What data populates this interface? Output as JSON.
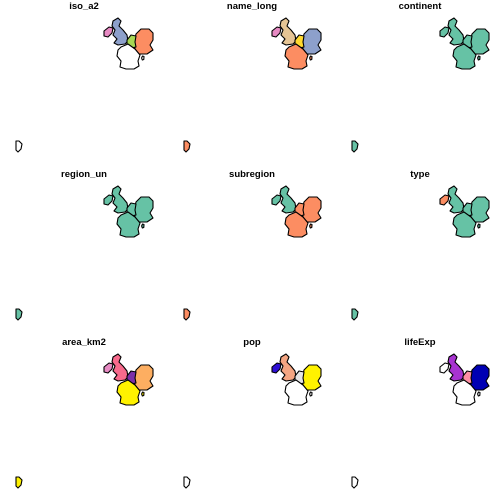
{
  "panels": [
    {
      "title": "iso_a2",
      "colors": {
        "ireland": "#E78AC3",
        "uk": "#8DA0CB",
        "benelux": "#A6D854",
        "germany": "#FC8D62",
        "france": "#FFFFFF",
        "corsica": "#FFFFFF",
        "guiana": "#FFFFFF"
      }
    },
    {
      "title": "name_long",
      "colors": {
        "ireland": "#E78AC3",
        "uk": "#E5C494",
        "benelux": "#FFD92F",
        "germany": "#8DA0CB",
        "france": "#FC8D62",
        "corsica": "#FC8D62",
        "guiana": "#FC8D62"
      }
    },
    {
      "title": "continent",
      "colors": {
        "ireland": "#66C2A5",
        "uk": "#66C2A5",
        "benelux": "#66C2A5",
        "germany": "#66C2A5",
        "france": "#66C2A5",
        "corsica": "#66C2A5",
        "guiana": "#66C2A5"
      }
    },
    {
      "title": "region_un",
      "colors": {
        "ireland": "#66C2A5",
        "uk": "#66C2A5",
        "benelux": "#66C2A5",
        "germany": "#66C2A5",
        "france": "#66C2A5",
        "corsica": "#66C2A5",
        "guiana": "#66C2A5"
      }
    },
    {
      "title": "subregion",
      "colors": {
        "ireland": "#66C2A5",
        "uk": "#66C2A5",
        "benelux": "#FC8D62",
        "germany": "#FC8D62",
        "france": "#FC8D62",
        "corsica": "#FC8D62",
        "guiana": "#FC8D62"
      }
    },
    {
      "title": "type",
      "colors": {
        "ireland": "#FC8D62",
        "uk": "#66C2A5",
        "benelux": "#66C2A5",
        "germany": "#66C2A5",
        "france": "#66C2A5",
        "corsica": "#66C2A5",
        "guiana": "#66C2A5"
      }
    },
    {
      "title": "area_km2",
      "colors": {
        "ireland": "#E78AC3",
        "uk": "#F76A8C",
        "benelux": "#7B2FA8",
        "germany": "#FDAE61",
        "france": "#FFF200",
        "corsica": "#FFF200",
        "guiana": "#FFF200"
      }
    },
    {
      "title": "pop",
      "colors": {
        "ireland": "#2E0FD4",
        "uk": "#F4A582",
        "benelux": "#E5E5E5",
        "germany": "#FFF200",
        "france": "#FFFFFF",
        "corsica": "#FFFFFF",
        "guiana": "#FFFFFF"
      }
    },
    {
      "title": "lifeExp",
      "colors": {
        "ireland": "#FFFFFF",
        "uk": "#A833D1",
        "benelux": "#FF8FA3",
        "germany": "#0000B4",
        "france": "#FFFFFF",
        "corsica": "#FFFFFF",
        "guiana": "#FFFFFF"
      }
    }
  ]
}
